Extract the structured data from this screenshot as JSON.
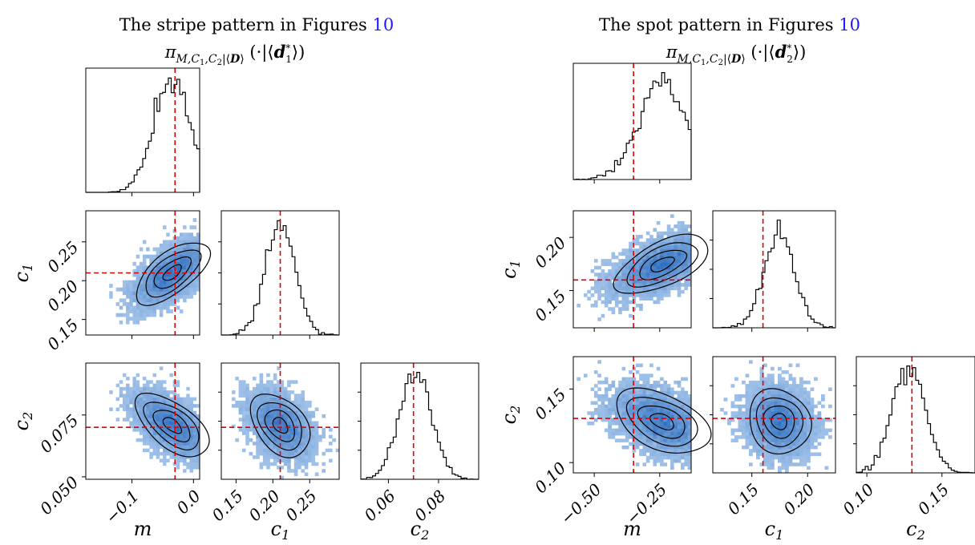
{
  "chart_data": [
    {
      "type": "corner",
      "title": "The stripe pattern in Figures",
      "title_ref": "10",
      "subtitle": "π_{M,C1,C2|⟨D⟩}(·|⟨d1*⟩)",
      "parameters": [
        {
          "key": "m",
          "label": "m",
          "sub": "",
          "range": [
            -0.175,
            0.01
          ],
          "ticks": [
            -0.1,
            0.0
          ],
          "tick_labels": [
            "−0.1",
            "0.0"
          ],
          "truth": -0.03,
          "center": -0.035,
          "sd": 0.03
        },
        {
          "key": "c1",
          "label": "c",
          "sub": "1",
          "range": [
            0.13,
            0.29
          ],
          "ticks": [
            0.15,
            0.2,
            0.25
          ],
          "tick_labels": [
            "0.15",
            "0.20",
            "0.25"
          ],
          "truth": 0.21,
          "center": 0.21,
          "sd": 0.02
        },
        {
          "key": "c2",
          "label": "c",
          "sub": "2",
          "range": [
            0.049,
            0.096
          ],
          "ticks": [
            0.06,
            0.08
          ],
          "tick_labels": [
            "0.06",
            "0.08"
          ],
          "truth": 0.07,
          "center": 0.071,
          "sd": 0.0065
        }
      ],
      "y_ticks": {
        "c1": {
          "ticks": [
            0.15,
            0.2,
            0.25
          ],
          "tick_labels": [
            "0.15",
            "0.20",
            "0.25"
          ]
        },
        "c2": {
          "ticks": [
            0.05,
            0.075
          ],
          "tick_labels": [
            "0.050",
            "0.075"
          ]
        }
      },
      "correlations": {
        "m_c1": 0.65,
        "m_c2": -0.6,
        "c1_c2": 0.0
      }
    },
    {
      "type": "corner",
      "title": "The spot pattern in Figures",
      "title_ref": "10",
      "subtitle": "π_{M,C1,C2|⟨D⟩}(·|⟨d2*⟩)",
      "parameters": [
        {
          "key": "m",
          "label": "m",
          "sub": "",
          "range": [
            -0.58,
            -0.13
          ],
          "ticks": [
            -0.5,
            -0.25
          ],
          "tick_labels": [
            "−0.50",
            "−0.25"
          ],
          "truth": -0.35,
          "center": -0.24,
          "sd": 0.09
        },
        {
          "key": "c1",
          "label": "c",
          "sub": "1",
          "range": [
            0.115,
            0.225
          ],
          "ticks": [
            0.15,
            0.2
          ],
          "tick_labels": [
            "0.15",
            "0.20"
          ],
          "truth": 0.16,
          "center": 0.175,
          "sd": 0.014
        },
        {
          "key": "c2",
          "label": "c",
          "sub": "2",
          "range": [
            0.093,
            0.172
          ],
          "ticks": [
            0.1,
            0.15
          ],
          "tick_labels": [
            "0.10",
            "0.15"
          ],
          "truth": 0.13,
          "center": 0.128,
          "sd": 0.011
        }
      ],
      "y_ticks": {
        "c1": {
          "ticks": [
            0.15,
            0.2
          ],
          "tick_labels": [
            "0.15",
            "0.20"
          ]
        },
        "c2": {
          "ticks": [
            0.1,
            0.15
          ],
          "tick_labels": [
            "0.10",
            "0.15"
          ]
        }
      },
      "correlations": {
        "m_c1": 0.6,
        "m_c2": -0.45,
        "c1_c2": 0.2
      }
    }
  ],
  "colors": {
    "truth_line": "#e00000",
    "heat_low": "#a9c8ec",
    "heat_high": "#2f6fbf",
    "contour": "#000000"
  }
}
